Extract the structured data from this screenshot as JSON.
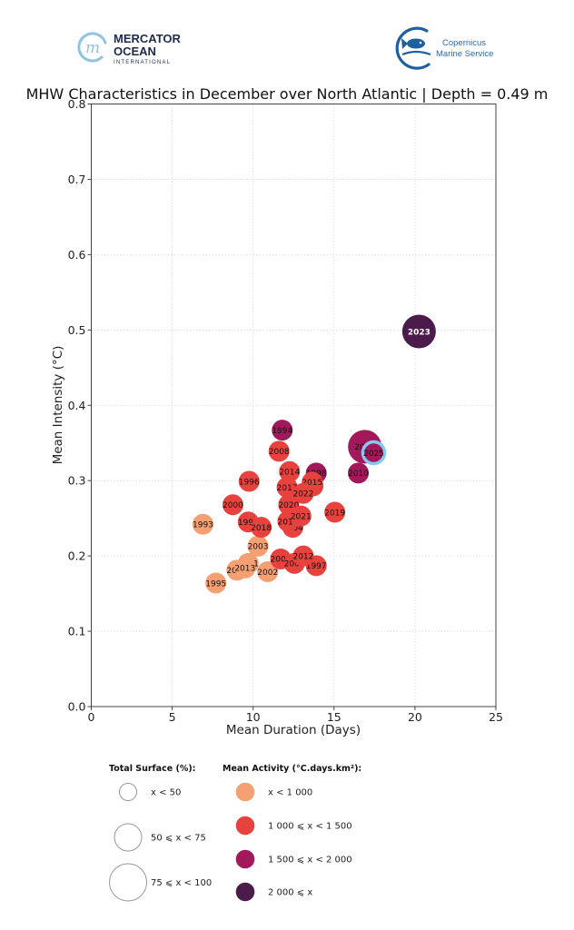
{
  "logos": {
    "mercator": {
      "line1": "MERCATOR",
      "line2": "OCEAN",
      "line3": "INTERNATIONAL",
      "color": "#1f2a4d",
      "mark_color": "#8fc3e0"
    },
    "copernicus": {
      "line1": "Copernicus",
      "line2": "Marine Service",
      "color": "#2b6cb0"
    }
  },
  "chart_data": {
    "type": "scatter",
    "subtype": "bubble",
    "title": "MHW Characteristics in December over North Atlantic | Depth = 0.49 m",
    "xlabel": "Mean Duration (Days)",
    "ylabel": "Mean Intensity (°C)",
    "xlim": [
      0,
      25
    ],
    "ylim": [
      0.0,
      0.8
    ],
    "xticks": [
      0,
      5,
      10,
      15,
      20,
      25
    ],
    "xtick_labels": [
      "0",
      "5",
      "10",
      "15",
      "20",
      "25"
    ],
    "yticks": [
      0.0,
      0.1,
      0.2,
      0.3,
      0.4,
      0.5,
      0.6,
      0.7,
      0.8
    ],
    "ytick_labels": [
      "0.0",
      "0.1",
      "0.2",
      "0.3",
      "0.4",
      "0.5",
      "0.6",
      "0.7",
      "0.8"
    ],
    "grid": true,
    "highlight_year": "2025",
    "highlight_color": "#86c8f0",
    "activity_classes": [
      {
        "label": "x < 1 000",
        "color": "#f4a072"
      },
      {
        "label": "1 000 ⩽ x < 1 500",
        "color": "#e8423f"
      },
      {
        "label": "1 500 ⩽ x < 2 000",
        "color": "#a1195a"
      },
      {
        "label": "2 000 ⩽ x",
        "color": "#4b1b4c"
      }
    ],
    "surface_classes": [
      {
        "label": "x < 50"
      },
      {
        "label": "50 ⩽ x < 75"
      },
      {
        "label": "75 ⩽ x < 100"
      }
    ],
    "legend": {
      "surface_title": "Total Surface (%):",
      "activity_title": "Mean Activity (°C.days.km²):",
      "placement": "bottom"
    },
    "points": [
      {
        "year": "1993",
        "duration": 6.9,
        "intensity": 0.242,
        "activity_class": 0,
        "surface_class": 0
      },
      {
        "year": "1994",
        "duration": 11.8,
        "intensity": 0.367,
        "activity_class": 2,
        "surface_class": 0
      },
      {
        "year": "1995",
        "duration": 7.7,
        "intensity": 0.164,
        "activity_class": 0,
        "surface_class": 0
      },
      {
        "year": "1996",
        "duration": 9.75,
        "intensity": 0.299,
        "activity_class": 1,
        "surface_class": 0
      },
      {
        "year": "1997",
        "duration": 13.9,
        "intensity": 0.187,
        "activity_class": 1,
        "surface_class": 0
      },
      {
        "year": "1998",
        "duration": 13.9,
        "intensity": 0.31,
        "activity_class": 2,
        "surface_class": 0
      },
      {
        "year": "1999",
        "duration": 9.7,
        "intensity": 0.245,
        "activity_class": 1,
        "surface_class": 0
      },
      {
        "year": "2000",
        "duration": 8.75,
        "intensity": 0.268,
        "activity_class": 1,
        "surface_class": 0
      },
      {
        "year": "2001",
        "duration": 12.45,
        "intensity": 0.239,
        "activity_class": 1,
        "surface_class": 0
      },
      {
        "year": "2002",
        "duration": 10.9,
        "intensity": 0.179,
        "activity_class": 0,
        "surface_class": 0
      },
      {
        "year": "2003",
        "duration": 10.3,
        "intensity": 0.213,
        "activity_class": 0,
        "surface_class": 0
      },
      {
        "year": "2004",
        "duration": 12.45,
        "intensity": 0.238,
        "activity_class": 1,
        "surface_class": 0
      },
      {
        "year": "2005",
        "duration": 11.7,
        "intensity": 0.196,
        "activity_class": 1,
        "surface_class": 0
      },
      {
        "year": "2006",
        "duration": 9.0,
        "intensity": 0.181,
        "activity_class": 0,
        "surface_class": 0
      },
      {
        "year": "2007",
        "duration": 13.7,
        "intensity": 0.293,
        "activity_class": 1,
        "surface_class": 0
      },
      {
        "year": "2008",
        "duration": 11.6,
        "intensity": 0.339,
        "activity_class": 1,
        "surface_class": 0
      },
      {
        "year": "2009",
        "duration": 12.55,
        "intensity": 0.19,
        "activity_class": 1,
        "surface_class": 0
      },
      {
        "year": "2010",
        "duration": 16.5,
        "intensity": 0.31,
        "activity_class": 2,
        "surface_class": 0
      },
      {
        "year": "2011",
        "duration": 9.7,
        "intensity": 0.19,
        "activity_class": 0,
        "surface_class": 0
      },
      {
        "year": "2012",
        "duration": 13.1,
        "intensity": 0.2,
        "activity_class": 1,
        "surface_class": 0
      },
      {
        "year": "2013",
        "duration": 9.5,
        "intensity": 0.184,
        "activity_class": 0,
        "surface_class": 0
      },
      {
        "year": "2014",
        "duration": 12.25,
        "intensity": 0.312,
        "activity_class": 1,
        "surface_class": 0
      },
      {
        "year": "2015",
        "duration": 13.65,
        "intensity": 0.298,
        "activity_class": 1,
        "surface_class": 0
      },
      {
        "year": "2016",
        "duration": 12.15,
        "intensity": 0.246,
        "activity_class": 1,
        "surface_class": 0
      },
      {
        "year": "2017",
        "duration": 12.1,
        "intensity": 0.291,
        "activity_class": 1,
        "surface_class": 0
      },
      {
        "year": "2018",
        "duration": 10.5,
        "intensity": 0.238,
        "activity_class": 1,
        "surface_class": 0
      },
      {
        "year": "2019",
        "duration": 15.05,
        "intensity": 0.258,
        "activity_class": 1,
        "surface_class": 0
      },
      {
        "year": "2020",
        "duration": 12.2,
        "intensity": 0.268,
        "activity_class": 1,
        "surface_class": 0
      },
      {
        "year": "2021",
        "duration": 12.95,
        "intensity": 0.253,
        "activity_class": 1,
        "surface_class": 0
      },
      {
        "year": "2022",
        "duration": 13.1,
        "intensity": 0.283,
        "activity_class": 1,
        "surface_class": 0
      },
      {
        "year": "2023",
        "duration": 20.25,
        "intensity": 0.498,
        "activity_class": 3,
        "surface_class": 1
      },
      {
        "year": "2024",
        "duration": 16.9,
        "intensity": 0.345,
        "activity_class": 2,
        "surface_class": 1
      },
      {
        "year": "2025",
        "duration": 17.45,
        "intensity": 0.337,
        "activity_class": 2,
        "surface_class": 0
      }
    ]
  }
}
